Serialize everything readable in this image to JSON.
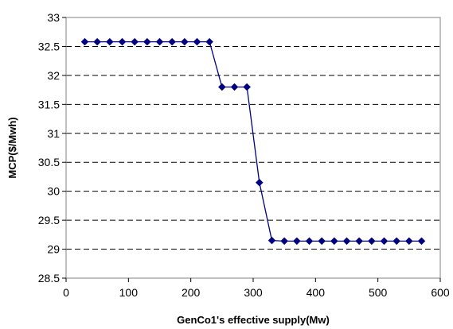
{
  "chart_data": {
    "type": "line",
    "title": "",
    "xlabel": "GenCo1's effective supply(Mw)",
    "ylabel": "MCP($/Mwh)",
    "xlim": [
      0,
      600
    ],
    "ylim": [
      28.5,
      33
    ],
    "xticks": [
      "0",
      "100",
      "200",
      "300",
      "400",
      "500",
      "600"
    ],
    "yticks": [
      "28.5",
      "29",
      "29.5",
      "30",
      "30.5",
      "31",
      "31.5",
      "32",
      "32.5",
      "33"
    ],
    "grid": "horizontal-dashed",
    "legend": "none",
    "series": [
      {
        "color": "#000080",
        "marker": "diamond",
        "x": [
          30,
          50,
          70,
          90,
          110,
          130,
          150,
          170,
          190,
          210,
          230,
          250,
          270,
          290,
          310,
          330,
          350,
          370,
          390,
          410,
          430,
          450,
          470,
          490,
          510,
          530,
          550,
          570
        ],
        "y": [
          32.58,
          32.58,
          32.58,
          32.58,
          32.58,
          32.58,
          32.58,
          32.58,
          32.58,
          32.58,
          32.58,
          31.8,
          31.8,
          31.8,
          30.15,
          29.15,
          29.14,
          29.14,
          29.14,
          29.14,
          29.14,
          29.14,
          29.14,
          29.14,
          29.14,
          29.14,
          29.14,
          29.14
        ]
      }
    ]
  }
}
